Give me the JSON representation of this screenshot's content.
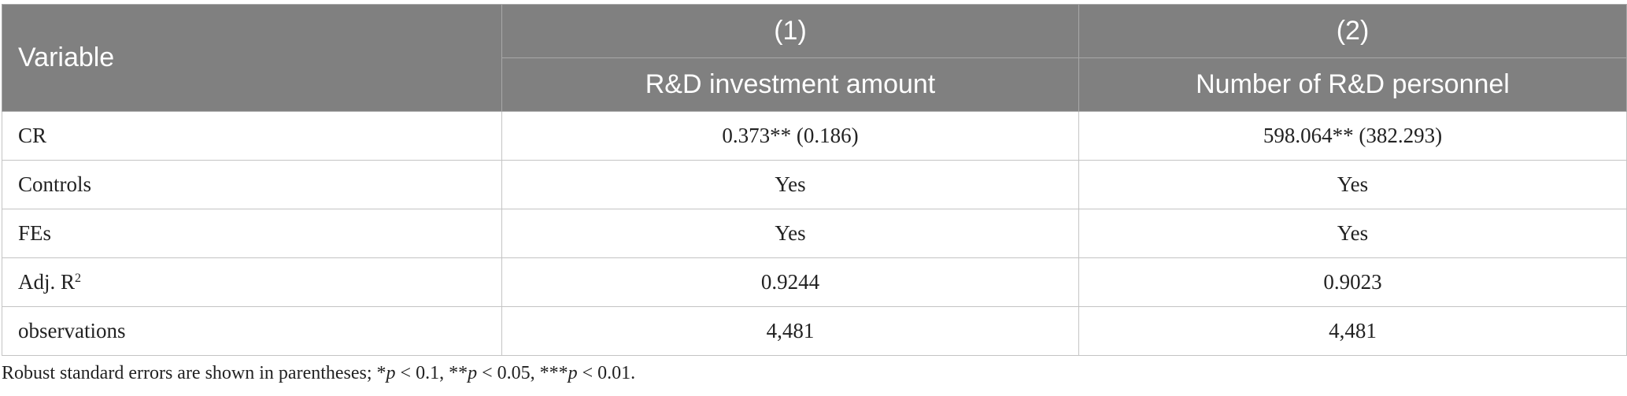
{
  "table": {
    "header": {
      "variable_label": "Variable",
      "col1_number": "(1)",
      "col2_number": "(2)",
      "col1_title": "R&D investment amount",
      "col2_title": "Number of R&D personnel"
    },
    "rows": [
      {
        "label": "CR",
        "col1": "0.373** (0.186)",
        "col2": "598.064** (382.293)"
      },
      {
        "label": "Controls",
        "col1": "Yes",
        "col2": "Yes"
      },
      {
        "label": "FEs",
        "col1": "Yes",
        "col2": "Yes"
      },
      {
        "label": "Adj. R",
        "label_sup": "2",
        "col1": "0.9244",
        "col2": "0.9023"
      },
      {
        "label": "observations",
        "col1": "4,481",
        "col2": "4,481"
      }
    ]
  },
  "footnote": {
    "prefix": "Robust standard errors are shown in parentheses; *",
    "p": "p",
    "part1": " < 0.1, **",
    "part2": " < 0.05, ***",
    "part3": " < 0.01."
  },
  "colors": {
    "header_bg": "#808080",
    "header_text": "#ffffff",
    "border": "#c4c4c4"
  }
}
